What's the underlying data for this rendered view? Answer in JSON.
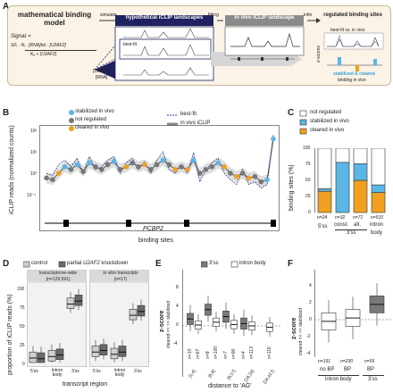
{
  "panel_labels": {
    "a": "A",
    "b": "B",
    "c": "C",
    "d": "D",
    "e": "E",
    "f": "F"
  },
  "panelA": {
    "model_title": "mathematical binding model",
    "formula_lines": [
      "Signalᵢ =",
      "SFᵢ · Nᵢ · [RNA]tot · [U2AF2]",
      "Kₐ + [U2AF2]"
    ],
    "simulate": "simulate",
    "fitting": "fitting",
    "infer": "infer",
    "hypothetical": "hypothetical iCLIP landscapes",
    "best_fit": "best-fit",
    "invivo_landscape": "in vivo iCLIP landscape",
    "regulated": "regulated binding sites",
    "bestfit_vs": "best-fit vs. in vivo",
    "zscores": "z-scores",
    "u2af2_axis": "[U2AF2]",
    "rna_axis": "[RNA]",
    "stabilized_cleared": "stabilized & cleared",
    "binding_in_vivo": "binding in vivo"
  },
  "panelB": {
    "ylabel": "iCLIP reads (normalized counts)",
    "xlabel": "binding sites",
    "gene": "PCBP2",
    "legend": {
      "stabilized": "stabilized in vivo",
      "notreg": "not regulated",
      "cleared": "cleared in vivo",
      "bestfit": "best-fit",
      "invivo": "in vivo iCLIP"
    },
    "yticks": [
      "10²",
      "10¹",
      "10⁰",
      "10⁻¹"
    ]
  },
  "panelC": {
    "ylabel": "binding sites (%)",
    "legend": [
      "not regulated",
      "stabilized in vivo",
      "cleared in vivo"
    ],
    "yticks": [
      "100",
      "75",
      "50",
      "25",
      "0"
    ],
    "ns": [
      "n=24",
      "n=32",
      "n=71",
      "n=510"
    ],
    "xlabels": [
      "5'ss",
      "const.",
      "alt.",
      "intron"
    ],
    "xlabels2": [
      "3'ss",
      "body"
    ],
    "colors": {
      "notreg": "#ffffff",
      "stabilized": "#5bb5e6",
      "cleared": "#f0a020"
    }
  },
  "panelD": {
    "ylabel": "proportion of iCLIP reads (%)",
    "xlabel": "transcript region",
    "legend_control": "control",
    "legend_kd_pre": "partial ",
    "legend_kd_gene": "U2AF2",
    "legend_kd_post": " knockdown",
    "sub1": "transcriptome-wide",
    "sub1n": "(n=129,591)",
    "sub2": "in vitro transcripts",
    "sub2n": "(n=17)",
    "yticks": [
      "100",
      "75",
      "50",
      "25",
      "0"
    ],
    "xt": [
      "5'ss",
      "intron body",
      "3'ss",
      "5'ss",
      "intron body",
      "3'ss"
    ]
  },
  "panelE": {
    "legend": [
      "3'ss",
      "intron body"
    ],
    "ylabel": "z-score",
    "ysub": "cleared <<  >> stabilized",
    "xlabel": "distance to 'AG'",
    "yticks": [
      "8",
      "4",
      "0",
      "-4"
    ],
    "cats": [
      "[1,4]",
      "[5,8]",
      "[9,17]",
      "[18,33]",
      "[34,417]"
    ],
    "ns": [
      "n=10",
      "n=67",
      "n=8",
      "n=100",
      "n=7",
      "n=90",
      "n=4",
      "n=113",
      "n=116"
    ]
  },
  "panelF": {
    "ylabel": "z-score",
    "ysub": "cleared <<  >> stabilized",
    "yticks": [
      "4",
      "2",
      "0",
      "-2",
      "-4"
    ],
    "cats": [
      "no BP",
      "BP",
      "BP"
    ],
    "ns": [
      "n=191",
      "n=230",
      "n=55"
    ],
    "groups": [
      "intron body",
      "3'ss"
    ]
  },
  "chart_data": [
    {
      "type": "line",
      "panel": "B",
      "ylabel": "iCLIP reads (normalized counts)",
      "xlabel": "binding sites",
      "scale": "log",
      "series": [
        {
          "name": "in vivo iCLIP",
          "values": [
            0.6,
            0.5,
            1.0,
            2.0,
            1.5,
            2.5,
            1.2,
            3.0,
            2.0,
            1.5,
            2.5,
            3.5,
            1.5,
            2.0,
            3.0,
            2.0,
            2.5,
            1.5,
            2.5,
            4,
            2.5,
            1.5,
            2.0,
            1.5,
            4.0,
            1.0,
            1.5,
            2.0,
            3.0,
            2.0,
            1.0,
            0.7,
            1.0,
            0.6,
            0.7,
            0.4,
            0.5,
            40
          ]
        },
        {
          "name": "best-fit",
          "values": [
            1.0,
            0.8,
            2.5,
            4.0,
            2.0,
            5.0,
            1.0,
            6.0,
            1.5,
            2.0,
            4.0,
            6.0,
            1.0,
            3.0,
            5.0,
            1.5,
            3.5,
            1.0,
            4.0,
            10,
            1.5,
            1.0,
            2.5,
            1.0,
            9.0,
            0.4,
            1.5,
            3.0,
            5.0,
            1.0,
            0.5,
            0.3,
            1.5,
            0.3,
            0.4,
            0.2,
            0.3,
            60
          ]
        }
      ]
    },
    {
      "type": "bar",
      "panel": "C",
      "ylabel": "binding sites (%)",
      "ylim": [
        0,
        100
      ],
      "categories": [
        "5'ss",
        "const. 3'ss",
        "alt. 3'ss",
        "intron body"
      ],
      "series": [
        {
          "name": "cleared in vivo",
          "values": [
            33,
            0,
            50,
            31
          ]
        },
        {
          "name": "stabilized in vivo",
          "values": [
            4,
            78,
            26,
            12
          ]
        },
        {
          "name": "not regulated",
          "values": [
            63,
            22,
            24,
            57
          ]
        }
      ]
    },
    {
      "type": "box",
      "panel": "D",
      "ylabel": "proportion of iCLIP reads (%)",
      "ylim": [
        0,
        100
      ],
      "groups": [
        {
          "name": "transcriptome-wide (n=129,591)",
          "categories": [
            "5'ss",
            "intron body",
            "3'ss"
          ],
          "control_median": [
            6,
            8,
            78
          ],
          "knockdown_median": [
            5,
            10,
            82
          ]
        },
        {
          "name": "in vitro transcripts (n=17)",
          "categories": [
            "5'ss",
            "intron body",
            "3'ss"
          ],
          "control_median": [
            14,
            11,
            63
          ],
          "knockdown_median": [
            16,
            14,
            68
          ]
        }
      ]
    },
    {
      "type": "box",
      "panel": "E",
      "ylabel": "z-score",
      "categories": [
        "[1,4]",
        "[5,8]",
        "[9,17]",
        "[18,33]",
        "[34,417]"
      ],
      "series": [
        {
          "name": "3'ss",
          "median": [
            1.5,
            3.5,
            2.0,
            0.5,
            null
          ]
        },
        {
          "name": "intron body",
          "median": [
            0.2,
            0.8,
            0.3,
            0.0,
            -0.3
          ]
        }
      ]
    },
    {
      "type": "box",
      "panel": "F",
      "ylabel": "z-score",
      "categories": [
        "no BP",
        "BP",
        "BP"
      ],
      "median": [
        -0.2,
        0.2,
        1.8
      ]
    }
  ]
}
